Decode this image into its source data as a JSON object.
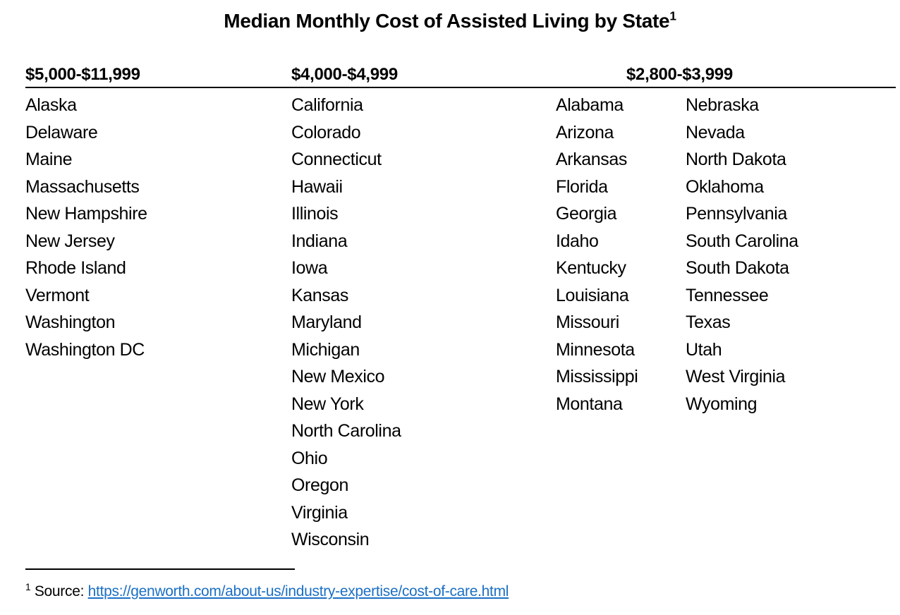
{
  "title": {
    "text": "Median Monthly Cost of Assisted Living by State",
    "superscript": "1"
  },
  "table": {
    "groups": [
      {
        "header": "$5,000-$11,999",
        "states": [
          "Alaska",
          "Delaware",
          "Maine",
          "Massachusetts",
          "New Hampshire",
          "New Jersey",
          "Rhode Island",
          "Vermont",
          "Washington",
          "Washington DC"
        ]
      },
      {
        "header": "$4,000-$4,999",
        "states": [
          "California",
          "Colorado",
          "Connecticut",
          "Hawaii",
          "Illinois",
          "Indiana",
          "Iowa",
          "Kansas",
          "Maryland",
          "Michigan",
          "New Mexico",
          "New York",
          "North Carolina",
          "Ohio",
          "Oregon",
          "Virginia",
          "Wisconsin"
        ]
      },
      {
        "header": "$2,800-$3,999",
        "states_left": [
          "Alabama",
          "Arizona",
          "Arkansas",
          "Florida",
          "Georgia",
          "Idaho",
          "Kentucky",
          "Louisiana",
          "Missouri",
          "Minnesota",
          "Mississippi",
          "Montana"
        ],
        "states_right": [
          "Nebraska",
          "Nevada",
          "North Dakota",
          "Oklahoma",
          "Pennsylvania",
          "South Carolina",
          "South Dakota",
          "Tennessee",
          "Texas",
          "Utah",
          "West Virginia",
          "Wyoming"
        ]
      }
    ]
  },
  "footnote": {
    "marker": "1",
    "label": "Source:",
    "link_text": "https://genworth.com/about-us/industry-expertise/cost-of-care.html",
    "link_color": "#1B6FC4"
  },
  "colors": {
    "text": "#000000",
    "background": "#ffffff",
    "rule": "#000000"
  }
}
